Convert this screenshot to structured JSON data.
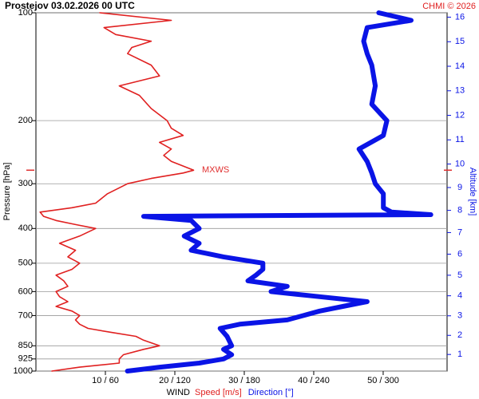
{
  "chart_data": {
    "type": "line",
    "title": "Prostejov    03.02.2026 00 UTC",
    "credit": "CHMI © 2026",
    "y_label": "Pressure [hPa]",
    "y2_label": "Altitude [km]",
    "x_label": "WIND",
    "log_y": true,
    "grid": true,
    "ylim": [
      1000,
      100
    ],
    "yticks": [
      100,
      200,
      300,
      400,
      500,
      600,
      700,
      850,
      925,
      1000
    ],
    "y2ticks": [
      1,
      2,
      3,
      4,
      5,
      6,
      7,
      8,
      9,
      10,
      11,
      12,
      13,
      14,
      15,
      16
    ],
    "xlim": [
      0,
      59.2
    ],
    "x2lim": [
      0,
      355
    ],
    "xticks": [
      {
        "value": 10,
        "label": "10 / 60"
      },
      {
        "value": 20,
        "label": "20 / 120"
      },
      {
        "value": 30,
        "label": "30 / 180"
      },
      {
        "value": 40,
        "label": "40 / 240"
      },
      {
        "value": 50,
        "label": "50 / 300"
      }
    ],
    "annotation": {
      "label": "MXWS",
      "pressure": 275,
      "color": "#e03030"
    },
    "series": [
      {
        "name": "Speed [m/s]",
        "color": "#e02020",
        "axis": "x",
        "y": [
          1000,
          975,
          950,
          925,
          900,
          870,
          850,
          820,
          800,
          780,
          760,
          740,
          720,
          700,
          680,
          660,
          640,
          620,
          600,
          580,
          560,
          540,
          520,
          500,
          480,
          460,
          440,
          420,
          400,
          390,
          380,
          370,
          360,
          350,
          340,
          320,
          300,
          290,
          280,
          275,
          260,
          250,
          240,
          230,
          220,
          210,
          200,
          185,
          170,
          160,
          150,
          140,
          130,
          125,
          120,
          115,
          110,
          105,
          100
        ],
        "values": [
          2.3,
          6.3,
          12,
          12,
          12.6,
          15.5,
          17.8,
          15.5,
          14.4,
          10.9,
          7.5,
          6.3,
          5.7,
          6.3,
          5.2,
          2.9,
          4.6,
          3.4,
          2.9,
          4.6,
          4,
          2.9,
          5.2,
          6.3,
          4.6,
          5.7,
          3.4,
          6.3,
          8.6,
          5.7,
          2.9,
          1.1,
          0.6,
          5.2,
          8.6,
          10.3,
          13.2,
          16.6,
          21.2,
          22.7,
          19.5,
          18.4,
          19.5,
          17.8,
          21.2,
          19.5,
          18.9,
          16.6,
          14.9,
          12,
          17.8,
          16.6,
          13.2,
          13.8,
          16.6,
          11.5,
          9.8,
          19.5,
          9.2
        ]
      },
      {
        "name": "Direction [°]",
        "color": "#0a14e6",
        "axis": "x2",
        "y": [
          1000,
          975,
          950,
          925,
          900,
          870,
          850,
          800,
          760,
          740,
          720,
          700,
          680,
          660,
          640,
          620,
          610,
          600,
          580,
          560,
          540,
          520,
          500,
          480,
          460,
          440,
          420,
          400,
          380,
          370,
          366,
          360,
          350,
          320,
          300,
          280,
          260,
          240,
          220,
          200,
          180,
          160,
          140,
          130,
          120,
          110,
          105,
          100
        ],
        "values": [
          79,
          107,
          141,
          162,
          169,
          162,
          169,
          165,
          159,
          176,
          217,
          231,
          245,
          265,
          286,
          245,
          224,
          203,
          217,
          183,
          190,
          196,
          196,
          162,
          134,
          141,
          128,
          141,
          134,
          93,
          341,
          307,
          300,
          300,
          293,
          290,
          286,
          279,
          300,
          303,
          290,
          293,
          290,
          286,
          283,
          286,
          324,
          296
        ]
      }
    ]
  }
}
